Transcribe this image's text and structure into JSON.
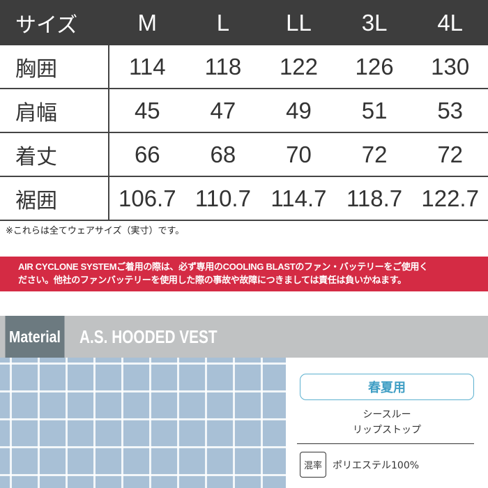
{
  "table": {
    "header": {
      "label": "サイズ",
      "sizes": [
        "M",
        "L",
        "LL",
        "3L",
        "4L"
      ]
    },
    "rows": [
      {
        "label": "胸囲",
        "values": [
          "114",
          "118",
          "122",
          "126",
          "130"
        ]
      },
      {
        "label": "肩幅",
        "values": [
          "45",
          "47",
          "49",
          "51",
          "53"
        ]
      },
      {
        "label": "着丈",
        "values": [
          "66",
          "68",
          "70",
          "72",
          "72"
        ]
      },
      {
        "label": "裾囲",
        "values": [
          "106.7",
          "110.7",
          "114.7",
          "118.7",
          "122.7"
        ]
      }
    ]
  },
  "note": "※これらは全てウェアサイズ（実寸）です。",
  "banner": {
    "line1": "AIR CYCLONE SYSTEMご着用の際は、必ず専用のCOOLING BLASTのファン・バッテリーをご使用く",
    "line2": "ださい。他社のファンバッテリーを使用した際の事故や故障につきましては責任は負いかねます。",
    "color": "#d42b44"
  },
  "material": {
    "label": "Material",
    "product": "A.S. HOODED VEST",
    "season": "春夏用",
    "desc1": "シースルー",
    "desc2": "リップストップ",
    "mix_label": "混率",
    "mix_value": "ポリエステル100%"
  }
}
